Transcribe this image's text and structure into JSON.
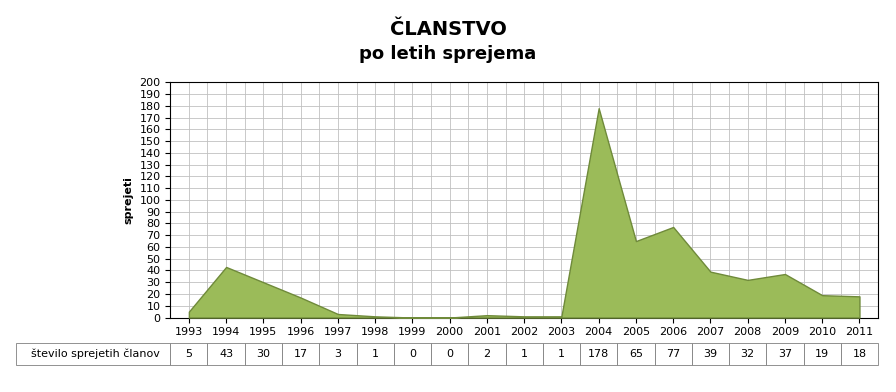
{
  "chart_data": {
    "type": "area",
    "title": "ČLANSTVO",
    "subtitle": "po letih sprejema",
    "y_label": "sprejeti",
    "categories": [
      "1993",
      "1994",
      "1995",
      "1996",
      "1997",
      "1998",
      "1999",
      "2000",
      "2001",
      "2002",
      "2003",
      "2004",
      "2005",
      "2006",
      "2007",
      "2008",
      "2009",
      "2010",
      "2011"
    ],
    "series": [
      {
        "name": "število sprejetih članov",
        "color": "#9bbb59",
        "values": [
          5,
          43,
          30,
          17,
          3,
          1,
          0,
          0,
          2,
          1,
          1,
          178,
          65,
          77,
          39,
          32,
          37,
          19,
          18
        ]
      }
    ],
    "ylim": [
      0,
      200
    ],
    "yticks": [
      0,
      10,
      20,
      30,
      40,
      50,
      60,
      70,
      80,
      90,
      100,
      110,
      120,
      130,
      140,
      150,
      160,
      170,
      180,
      190,
      200
    ],
    "grid": true,
    "data_labels": true
  }
}
